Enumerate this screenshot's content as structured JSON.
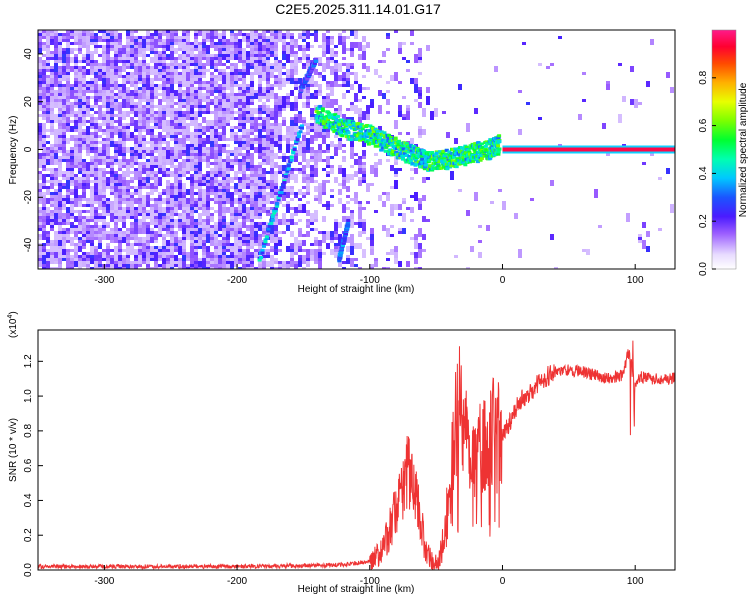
{
  "title": "C2E5.2025.311.14.01.G17",
  "colors": {
    "line": "#ee3333",
    "axis": "#000000",
    "spectro_low": "#7b2ff7",
    "spectro_high": "#ff1a4a"
  },
  "chart_data": [
    {
      "type": "heatmap",
      "name": "spectrogram",
      "xlabel": "Height of straight line (km)",
      "ylabel": "Frequency (Hz)",
      "xlim": [
        -350,
        130
      ],
      "ylim": [
        -50,
        50
      ],
      "xticks": [
        -300,
        -200,
        -100,
        0,
        100
      ],
      "xtick_labels": [
        "-300",
        "-200",
        "-100",
        "0",
        "100"
      ],
      "yticks": [
        -40,
        -20,
        0,
        20,
        40
      ],
      "ytick_labels": [
        "-40",
        "-20",
        "0",
        "20",
        "40"
      ],
      "ridge_features": [
        {
          "name": "carrier-line",
          "x": [
            0,
            130
          ],
          "y": [
            0,
            0
          ],
          "amplitude": 0.95
        },
        {
          "name": "main-ridge",
          "x": [
            -140,
            -120,
            -100,
            -85,
            -70,
            -55,
            -40,
            -25,
            -10,
            -2
          ],
          "y": [
            15,
            9,
            6,
            2,
            -2,
            -5,
            -4,
            -2,
            0,
            2
          ],
          "amplitude": 0.55
        },
        {
          "name": "diagonal-streak-1",
          "x": [
            -183,
            -150
          ],
          "y": [
            -46,
            12
          ],
          "amplitude": 0.4
        },
        {
          "name": "diagonal-streak-2",
          "x": [
            -152,
            -140
          ],
          "y": [
            25,
            38
          ],
          "amplitude": 0.3
        },
        {
          "name": "diagonal-streak-3",
          "x": [
            -123,
            -116
          ],
          "y": [
            -46,
            -30
          ],
          "amplitude": 0.35
        }
      ],
      "colorbar": {
        "label": "Normalized spectral amplitude",
        "range": [
          0,
          1
        ],
        "ticks": [
          0,
          0.2,
          0.4,
          0.6,
          0.8
        ],
        "tick_labels": [
          "0.0",
          "0.2",
          "0.4",
          "0.6",
          "0.8"
        ]
      }
    },
    {
      "type": "line",
      "name": "snr",
      "xlabel": "Height of straight line (km)",
      "ylabel": "SNR (10 * v/v)",
      "y_multiplier": "(x10",
      "y_multiplier_exp": "4",
      "y_multiplier_close": ")",
      "xlim": [
        -350,
        130
      ],
      "ylim": [
        0,
        1.38
      ],
      "xticks": [
        -300,
        -200,
        -100,
        0,
        100
      ],
      "xtick_labels": [
        "-300",
        "-200",
        "-100",
        "0",
        "100"
      ],
      "yticks": [
        0,
        0.2,
        0.4,
        0.6,
        0.8,
        1.0,
        1.2
      ],
      "ytick_labels": [
        "0.0",
        "0.2",
        "0.4",
        "0.6",
        "0.8",
        "1.0",
        "1.2"
      ],
      "series": [
        {
          "name": "SNR",
          "x": [
            -350,
            -300,
            -250,
            -200,
            -150,
            -120,
            -100,
            -90,
            -82,
            -76,
            -72,
            -68,
            -62,
            -58,
            -52,
            -48,
            -44,
            -40,
            -36,
            -32,
            -28,
            -25,
            -22,
            -18,
            -14,
            -10,
            -6,
            -2,
            0,
            5,
            10,
            15,
            20,
            25,
            30,
            35,
            40,
            50,
            60,
            70,
            80,
            90,
            95,
            100,
            105,
            110,
            120,
            130
          ],
          "y": [
            0.02,
            0.02,
            0.02,
            0.02,
            0.025,
            0.03,
            0.05,
            0.12,
            0.3,
            0.45,
            0.6,
            0.5,
            0.3,
            0.12,
            0.04,
            0.05,
            0.2,
            0.5,
            0.8,
            1.0,
            0.85,
            0.7,
            0.62,
            0.68,
            0.75,
            0.78,
            0.8,
            0.76,
            0.78,
            0.85,
            0.93,
            0.98,
            1.02,
            1.06,
            1.1,
            1.12,
            1.14,
            1.15,
            1.14,
            1.12,
            1.1,
            1.12,
            1.25,
            1.08,
            1.11,
            1.1,
            1.1,
            1.1
          ]
        }
      ]
    }
  ]
}
